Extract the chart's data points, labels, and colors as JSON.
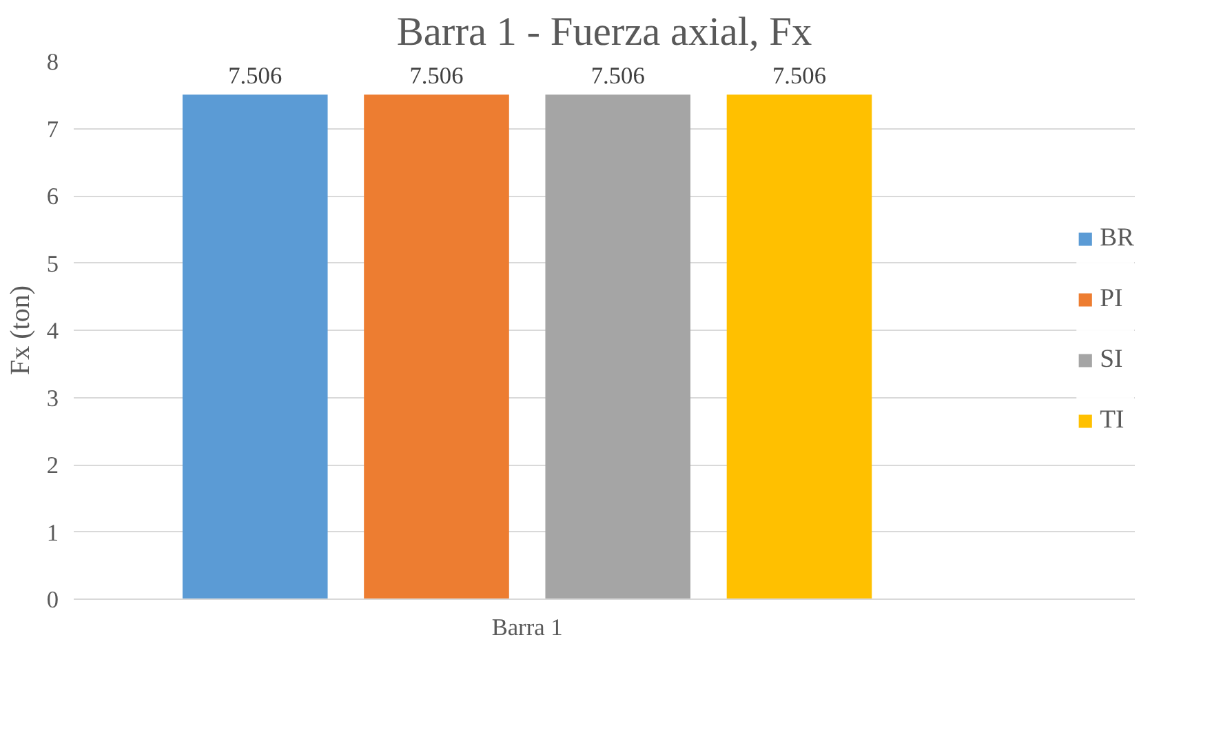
{
  "chart_data": {
    "type": "bar",
    "title": "Barra 1 - Fuerza axial, Fx",
    "ylabel": "Fx (ton)",
    "categories": [
      "Barra 1"
    ],
    "series": [
      {
        "name": "BR",
        "color": "#5b9bd5",
        "values": [
          7.506
        ]
      },
      {
        "name": "PI",
        "color": "#ed7d31",
        "values": [
          7.506
        ]
      },
      {
        "name": "SI",
        "color": "#a5a5a5",
        "values": [
          7.506
        ]
      },
      {
        "name": "TI",
        "color": "#ffc000",
        "values": [
          7.506
        ]
      }
    ],
    "ylim": [
      0,
      8
    ],
    "yticks": [
      0,
      1,
      2,
      3,
      4,
      5,
      6,
      7,
      8
    ],
    "grid": "y",
    "legend": "right",
    "data_labels": true
  }
}
